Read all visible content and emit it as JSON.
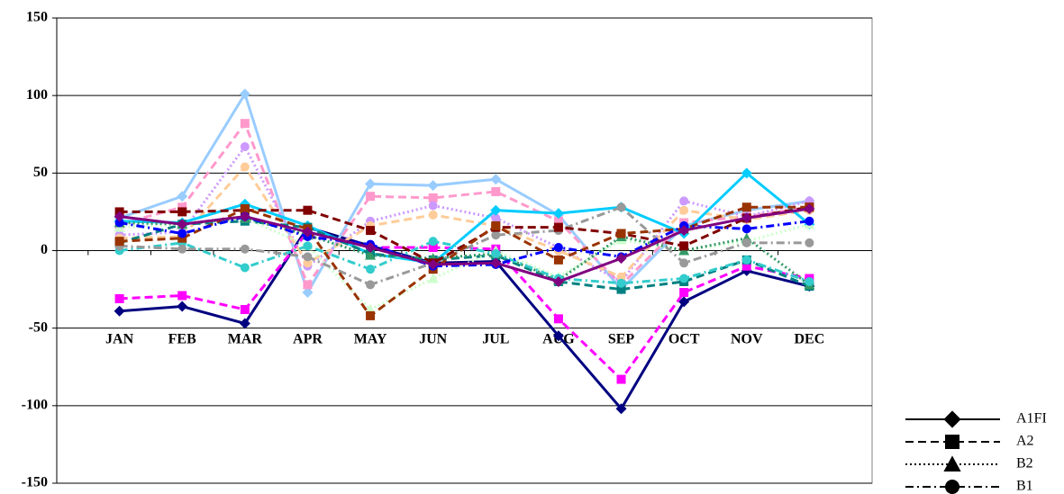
{
  "chart_data": {
    "type": "line",
    "categories": [
      "JAN",
      "FEB",
      "MAR",
      "APR",
      "MAY",
      "JUN",
      "JUL",
      "AUG",
      "SEP",
      "OCT",
      "NOV",
      "DEC"
    ],
    "ylim": [
      -150,
      150
    ],
    "yticks": [
      -150,
      -100,
      -50,
      0,
      50,
      100,
      150
    ],
    "grid": true,
    "series": [
      {
        "color": "#000080",
        "dash": "solid",
        "marker": "diamond",
        "values": [
          -39,
          -36,
          -47,
          15,
          3,
          -8,
          -7,
          -55,
          -102,
          -33,
          -13,
          -23
        ]
      },
      {
        "color": "#ff00ff",
        "dash": "dashed",
        "marker": "square",
        "values": [
          -31,
          -29,
          -38,
          12,
          2,
          2,
          1,
          -44,
          -83,
          -27,
          -10,
          -18
        ]
      },
      {
        "color": "#99ccff",
        "dash": "solid",
        "marker": "diamond",
        "values": [
          21,
          35,
          101,
          -27,
          43,
          42,
          46,
          23,
          -25,
          16,
          26,
          32
        ]
      },
      {
        "color": "#ff99cc",
        "dash": "dashed",
        "marker": "square",
        "values": [
          17,
          28,
          82,
          -22,
          35,
          34,
          38,
          19,
          -22,
          18,
          22,
          28
        ]
      },
      {
        "color": "#cc99ff",
        "dash": "dotted",
        "marker": "circle",
        "values": [
          10,
          12,
          67,
          -10,
          19,
          29,
          21,
          2,
          -20,
          32,
          22,
          32
        ]
      },
      {
        "color": "#ffcc99",
        "dash": "dashed",
        "marker": "circle",
        "values": [
          8,
          9,
          54,
          -8,
          16,
          23,
          16,
          0,
          -17,
          26,
          20,
          26
        ]
      },
      {
        "color": "#00ccff",
        "dash": "solid",
        "marker": "diamond",
        "values": [
          19,
          18,
          30,
          16,
          -2,
          -8,
          26,
          24,
          28,
          11,
          50,
          17
        ]
      },
      {
        "color": "#008080",
        "dash": "dashed",
        "marker": "square",
        "values": [
          5,
          17,
          19,
          15,
          -2,
          -6,
          -3,
          -20,
          -25,
          -20,
          -6,
          -23
        ]
      },
      {
        "color": "#ccffcc",
        "dash": "dotted",
        "marker": "triangle",
        "values": [
          15,
          17,
          21,
          3,
          -38,
          -18,
          0,
          -17,
          7,
          0,
          6,
          17
        ]
      },
      {
        "color": "#339966",
        "dash": "dotted",
        "marker": "triangle",
        "values": [
          18,
          17,
          21,
          10,
          -3,
          -5,
          -2,
          -19,
          9,
          0,
          8,
          -22
        ]
      },
      {
        "color": "#33cccc",
        "dash": "dashdot",
        "marker": "circle",
        "values": [
          0,
          5,
          -11,
          3,
          -12,
          6,
          -2,
          -18,
          -21,
          -18,
          -6,
          -20
        ]
      },
      {
        "color": "#999999",
        "dash": "dashdot",
        "marker": "circle",
        "values": [
          3,
          1,
          1,
          -4,
          -22,
          -8,
          10,
          13,
          28,
          -8,
          5,
          5
        ]
      },
      {
        "color": "#800000",
        "dash": "dashed",
        "marker": "square",
        "values": [
          25,
          25,
          26,
          26,
          13,
          -8,
          15,
          15,
          11,
          3,
          21,
          28
        ]
      },
      {
        "color": "#993300",
        "dash": "dashed",
        "marker": "square",
        "values": [
          6,
          8,
          27,
          14,
          -42,
          -12,
          16,
          -6,
          11,
          14,
          28,
          28
        ]
      },
      {
        "color": "#0000ff",
        "dash": "dashdot",
        "marker": "circle",
        "values": [
          18,
          11,
          22,
          9,
          4,
          -10,
          -9,
          2,
          -4,
          16,
          14,
          19
        ]
      },
      {
        "color": "#800080",
        "dash": "solid",
        "marker": "diamond",
        "values": [
          22,
          17,
          22,
          12,
          2,
          -9,
          -8,
          -20,
          -5,
          13,
          21,
          27
        ]
      }
    ],
    "legend": [
      {
        "name": "A1FI",
        "dash": "solid",
        "marker": "diamond",
        "color": "#000000"
      },
      {
        "name": "A2",
        "dash": "dashed",
        "marker": "square",
        "color": "#000000"
      },
      {
        "name": "B2",
        "dash": "dotted",
        "marker": "triangle",
        "color": "#000000"
      },
      {
        "name": "B1",
        "dash": "dashdot",
        "marker": "circle",
        "color": "#000000"
      }
    ]
  }
}
